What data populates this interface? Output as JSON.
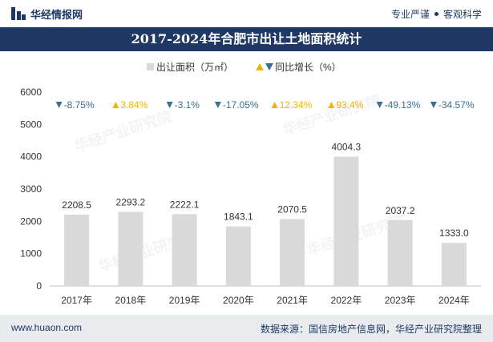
{
  "header": {
    "brand": "华经情报网",
    "right_a": "专业严谨",
    "right_b": "客观科学"
  },
  "title": "2017-2024年合肥市出让土地面积统计",
  "legend": {
    "bar": "出让面积（万㎡）",
    "change": "同比增长（%）"
  },
  "footer": {
    "left": "www.huaon.com",
    "right": "数据来源：国信房地产信息网，华经产业研究院整理"
  },
  "watermark": "华经产业研究院",
  "colors": {
    "bar": "#d9d9d9",
    "up": "#f0b400",
    "down": "#3a6f8f",
    "title_bg": "#1f3864"
  },
  "chart_data": {
    "type": "bar",
    "categories": [
      "2017年",
      "2018年",
      "2019年",
      "2020年",
      "2021年",
      "2022年",
      "2023年",
      "2024年"
    ],
    "series": [
      {
        "name": "出让面积（万㎡）",
        "values": [
          2208.5,
          2293.2,
          2222.1,
          1843.1,
          2070.5,
          4004.3,
          2037.2,
          1333.0
        ],
        "labels": [
          "2208.5",
          "2293.2",
          "2222.1",
          "1843.1",
          "2070.5",
          "4004.3",
          "2037.2",
          "1333.0"
        ]
      },
      {
        "name": "同比增长（%）",
        "values": [
          -8.75,
          3.84,
          -3.1,
          -17.05,
          12.34,
          93.4,
          -49.13,
          -34.57
        ],
        "labels": [
          "-8.75%",
          "3.84%",
          "-3.1%",
          "-17.05%",
          "12.34%",
          "93.4%",
          "-49.13%",
          "-34.57%"
        ]
      }
    ],
    "y_ticks": [
      "0",
      "1000",
      "2000",
      "3000",
      "4000",
      "5000",
      "6000"
    ],
    "ylim": [
      0,
      6000
    ],
    "grid": false,
    "legend_position": "top-center"
  }
}
